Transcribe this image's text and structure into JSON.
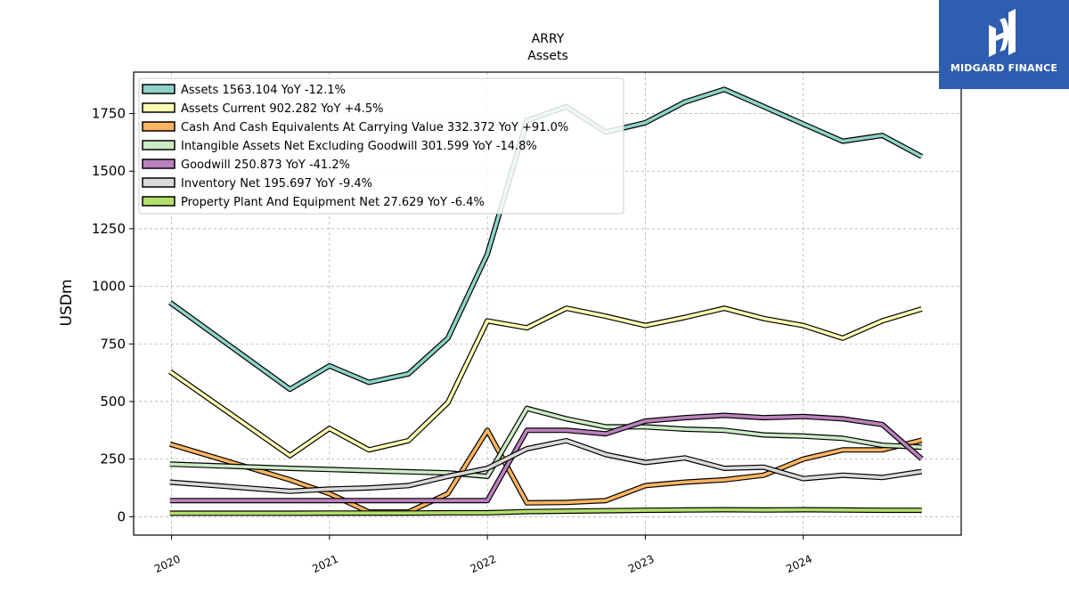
{
  "chart_data": {
    "type": "line",
    "title": "ARRY",
    "subtitle": "Assets",
    "ylabel": "USDm",
    "xlabel": "",
    "ylim": [
      -80,
      1930
    ],
    "xlim": [
      2019.76,
      2025.0
    ],
    "yticks": [
      0,
      250,
      500,
      750,
      1000,
      1250,
      1500,
      1750
    ],
    "xticks": [
      "2020",
      "2021",
      "2022",
      "2023",
      "2024"
    ],
    "grid": true,
    "legend_position": "top-left",
    "series": [
      {
        "name": "Assets",
        "legend": "Assets  1563.104 YoY -12.1%",
        "color": "#8dd3c7",
        "x": [
          2019.99,
          2020.75,
          2021.0,
          2021.25,
          2021.5,
          2021.75,
          2022.0,
          2022.25,
          2022.5,
          2022.75,
          2023.0,
          2023.25,
          2023.5,
          2023.75,
          2024.0,
          2024.25,
          2024.5,
          2024.75
        ],
        "values": [
          930,
          553,
          655,
          583,
          620,
          775,
          1140,
          1720,
          1780,
          1670,
          1710,
          1800,
          1855,
          1780,
          1705,
          1630,
          1655,
          1563
        ]
      },
      {
        "name": "Assets Current",
        "legend": "Assets Current  902.282 YoY +4.5%",
        "color": "#ffffb3",
        "x": [
          2019.99,
          2020.75,
          2021.0,
          2021.25,
          2021.5,
          2021.75,
          2022.0,
          2022.25,
          2022.5,
          2022.75,
          2023.0,
          2023.25,
          2023.5,
          2023.75,
          2024.0,
          2024.25,
          2024.5,
          2024.75
        ],
        "values": [
          630,
          265,
          383,
          290,
          330,
          495,
          850,
          820,
          905,
          870,
          830,
          865,
          905,
          860,
          830,
          775,
          850,
          902
        ]
      },
      {
        "name": "Cash And Cash Equivalents At Carrying Value",
        "legend": "Cash And Cash Equivalents At Carrying Value  332.372 YoY +91.0%",
        "color": "#fdb462",
        "x": [
          2019.99,
          2020.75,
          2021.0,
          2021.25,
          2021.5,
          2021.75,
          2022.0,
          2022.25,
          2022.5,
          2022.75,
          2023.0,
          2023.25,
          2023.5,
          2023.75,
          2024.0,
          2024.25,
          2024.5,
          2024.75
        ],
        "values": [
          315,
          160,
          100,
          20,
          20,
          100,
          375,
          60,
          62,
          70,
          135,
          150,
          160,
          180,
          250,
          290,
          290,
          332
        ]
      },
      {
        "name": "Intangible Assets Net Excluding Goodwill",
        "legend": "Intangible Assets Net Excluding Goodwill  301.599 YoY -14.8%",
        "color": "#ccebc5",
        "x": [
          2019.99,
          2020.75,
          2021.0,
          2021.25,
          2021.5,
          2021.75,
          2022.0,
          2022.25,
          2022.5,
          2022.75,
          2023.0,
          2023.25,
          2023.5,
          2023.75,
          2024.0,
          2024.25,
          2024.5,
          2024.75
        ],
        "values": [
          228,
          210,
          205,
          200,
          195,
          190,
          175,
          470,
          425,
          390,
          390,
          380,
          375,
          355,
          350,
          340,
          310,
          302
        ]
      },
      {
        "name": "Goodwill",
        "legend": "Goodwill  250.873 YoY -41.2%",
        "color": "#bc80bd",
        "x": [
          2019.99,
          2020.75,
          2021.0,
          2021.25,
          2021.5,
          2021.75,
          2022.0,
          2022.25,
          2022.5,
          2022.75,
          2023.0,
          2023.25,
          2023.5,
          2023.75,
          2024.0,
          2024.25,
          2024.5,
          2024.75
        ],
        "values": [
          70,
          70,
          70,
          70,
          70,
          70,
          70,
          375,
          375,
          360,
          415,
          430,
          440,
          430,
          435,
          425,
          400,
          251
        ]
      },
      {
        "name": "Inventory Net",
        "legend": "Inventory Net  195.697 YoY -9.4%",
        "color": "#d9d9d9",
        "x": [
          2019.99,
          2020.75,
          2021.0,
          2021.25,
          2021.5,
          2021.75,
          2022.0,
          2022.25,
          2022.5,
          2022.75,
          2023.0,
          2023.25,
          2023.5,
          2023.75,
          2024.0,
          2024.25,
          2024.5,
          2024.75
        ],
        "values": [
          150,
          110,
          120,
          125,
          135,
          175,
          210,
          295,
          330,
          270,
          235,
          255,
          210,
          215,
          165,
          180,
          170,
          196
        ]
      },
      {
        "name": "Property Plant And Equipment Net",
        "legend": "Property Plant And Equipment Net  27.629 YoY -6.4%",
        "color": "#b3de69",
        "x": [
          2019.99,
          2020.75,
          2021.0,
          2021.25,
          2021.5,
          2021.75,
          2022.0,
          2022.25,
          2022.5,
          2022.75,
          2023.0,
          2023.25,
          2023.5,
          2023.75,
          2024.0,
          2024.25,
          2024.5,
          2024.75
        ],
        "values": [
          15,
          15,
          16,
          16,
          16,
          17,
          17,
          22,
          24,
          26,
          28,
          29,
          30,
          29,
          30,
          29,
          28,
          28
        ]
      }
    ]
  },
  "logo": {
    "text": "MIDGARD FINANCE",
    "background": "#2f5db0",
    "icon": "midgard-logo-icon"
  }
}
